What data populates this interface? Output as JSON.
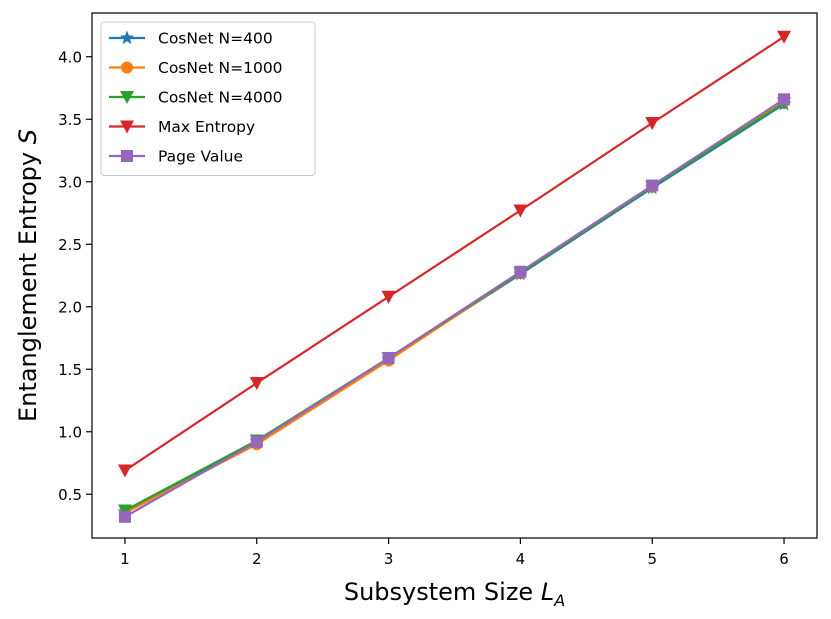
{
  "chart_data": {
    "type": "line",
    "title": "",
    "xlabel": "Subsystem Size",
    "xlabel_sub": "A",
    "xlabel_var": "L",
    "ylabel": "Entanglement Entropy",
    "ylabel_var": "S",
    "x": [
      1,
      2,
      3,
      4,
      5,
      6
    ],
    "xlim": [
      0.75,
      6.25
    ],
    "ylim": [
      0.15,
      4.35
    ],
    "xticks": [
      "1",
      "2",
      "3",
      "4",
      "5",
      "6"
    ],
    "yticks": [
      "0.5",
      "1.0",
      "1.5",
      "2.0",
      "2.5",
      "3.0",
      "3.5",
      "4.0"
    ],
    "grid": false,
    "legend_position": "top-left",
    "series": [
      {
        "name": "CosNet N=400",
        "color": "#1f77b4",
        "marker": "star",
        "values": [
          0.36,
          0.92,
          1.58,
          2.26,
          2.95,
          3.62
        ]
      },
      {
        "name": "CosNet N=1000",
        "color": "#ff7f0e",
        "marker": "circle",
        "values": [
          0.35,
          0.9,
          1.57,
          2.27,
          2.96,
          3.64
        ]
      },
      {
        "name": "CosNet N=4000",
        "color": "#2ca02c",
        "marker": "triangle-down",
        "values": [
          0.37,
          0.93,
          1.59,
          2.27,
          2.96,
          3.63
        ]
      },
      {
        "name": "Max Entropy",
        "color": "#d62728",
        "marker": "triangle-down",
        "values": [
          0.69,
          1.39,
          2.08,
          2.77,
          3.47,
          4.16
        ]
      },
      {
        "name": "Page Value",
        "color": "#9467bd",
        "marker": "square",
        "values": [
          0.32,
          0.92,
          1.59,
          2.28,
          2.97,
          3.66
        ]
      }
    ]
  }
}
